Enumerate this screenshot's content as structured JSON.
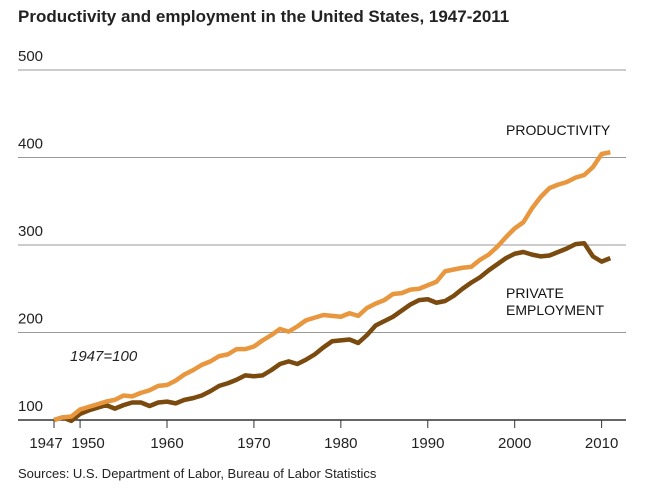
{
  "chart_data": {
    "type": "line",
    "title": "Productivity and employment in the United States, 1947-2011",
    "annotation": "1947=100",
    "source": "Sources: U.S. Department of Labor, Bureau of Labor Statistics",
    "x": [
      1947,
      1948,
      1949,
      1950,
      1951,
      1952,
      1953,
      1954,
      1955,
      1956,
      1957,
      1958,
      1959,
      1960,
      1961,
      1962,
      1963,
      1964,
      1965,
      1966,
      1967,
      1968,
      1969,
      1970,
      1971,
      1972,
      1973,
      1974,
      1975,
      1976,
      1977,
      1978,
      1979,
      1980,
      1981,
      1982,
      1983,
      1984,
      1985,
      1986,
      1987,
      1988,
      1989,
      1990,
      1991,
      1992,
      1993,
      1994,
      1995,
      1996,
      1997,
      1998,
      1999,
      2000,
      2001,
      2002,
      2003,
      2004,
      2005,
      2006,
      2007,
      2008,
      2009,
      2010,
      2011
    ],
    "series": [
      {
        "name": "PRODUCTIVITY",
        "color": "#e8973f",
        "values": [
          100,
          103,
          104,
          112,
          115,
          118,
          121,
          123,
          128,
          127,
          131,
          134,
          139,
          140,
          145,
          152,
          157,
          163,
          167,
          173,
          175,
          181,
          181,
          184,
          191,
          197,
          204,
          201,
          207,
          214,
          217,
          220,
          219,
          218,
          222,
          219,
          228,
          233,
          237,
          244,
          245,
          249,
          250,
          254,
          258,
          270,
          272,
          274,
          275,
          283,
          289,
          298,
          309,
          319,
          326,
          342,
          355,
          365,
          369,
          372,
          377,
          380,
          389,
          404,
          406
        ]
      },
      {
        "name": "PRIVATE EMPLOYMENT",
        "color": "#7a4a0f",
        "values": [
          100,
          103,
          99,
          107,
          111,
          114,
          117,
          113,
          117,
          120,
          120,
          116,
          120,
          121,
          119,
          123,
          125,
          128,
          133,
          139,
          142,
          146,
          151,
          150,
          151,
          157,
          164,
          167,
          164,
          169,
          175,
          183,
          190,
          191,
          192,
          188,
          197,
          208,
          213,
          218,
          225,
          232,
          237,
          238,
          234,
          236,
          242,
          250,
          257,
          263,
          271,
          278,
          285,
          290,
          292,
          289,
          287,
          288,
          292,
          296,
          301,
          302,
          287,
          281,
          285
        ]
      }
    ],
    "xlim": [
      1947,
      2012
    ],
    "xticks": [
      1947,
      1950,
      1960,
      1970,
      1980,
      1990,
      2000,
      2010
    ],
    "ylim": [
      100,
      500
    ],
    "yticks": [
      100,
      200,
      300,
      400,
      500
    ],
    "grid": true
  }
}
